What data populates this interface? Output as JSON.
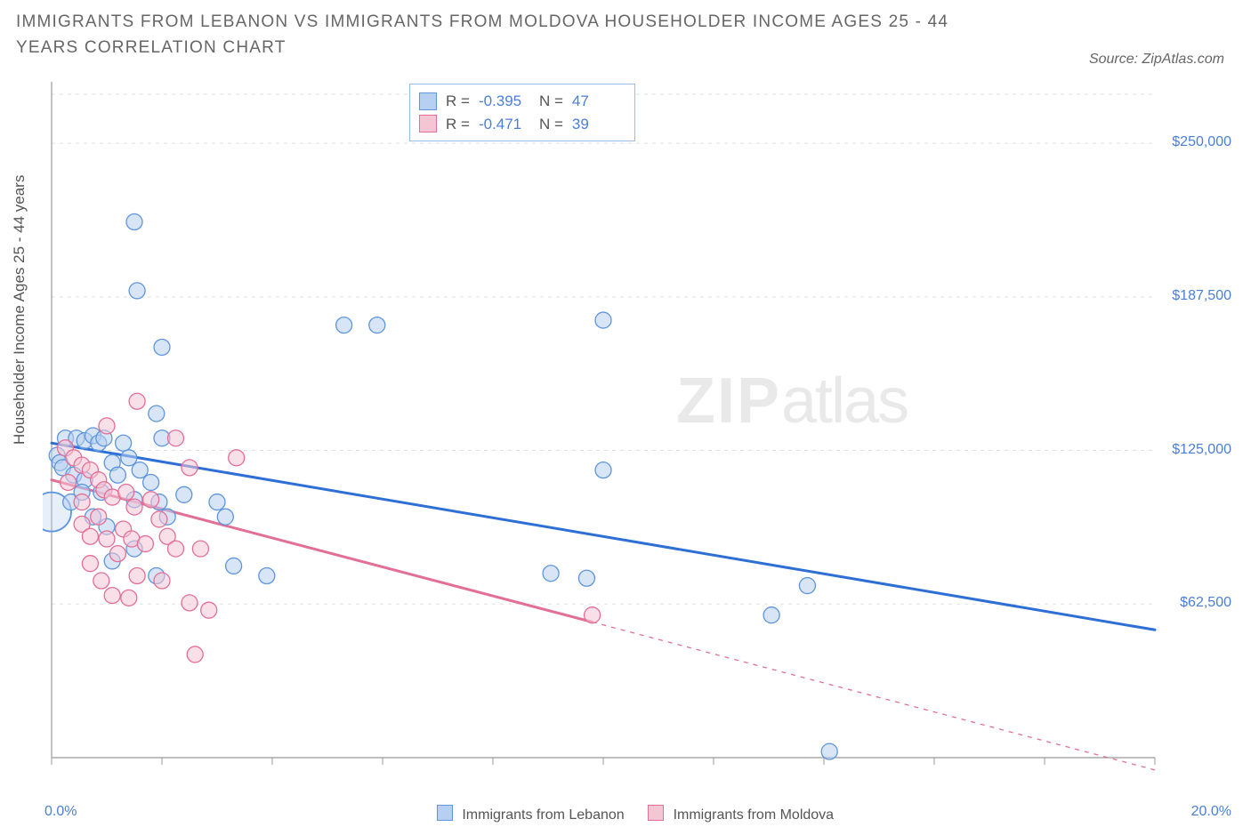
{
  "title": "IMMIGRANTS FROM LEBANON VS IMMIGRANTS FROM MOLDOVA HOUSEHOLDER INCOME AGES 25 - 44 YEARS CORRELATION CHART",
  "source": "Source: ZipAtlas.com",
  "y_axis_label": "Householder Income Ages 25 - 44 years",
  "watermark_bold": "ZIP",
  "watermark_light": "atlas",
  "chart": {
    "type": "scatter",
    "background_color": "#ffffff",
    "grid_color": "#e0e0e0",
    "axis_color": "#999999",
    "tick_label_color": "#4a7fd8",
    "x": {
      "min": 0.0,
      "max": 20.0,
      "ticks": [
        0,
        2,
        4,
        6,
        8,
        10,
        12,
        14,
        16,
        18,
        20
      ],
      "tick_labels": {
        "0": "0.0%",
        "20": "20.0%"
      }
    },
    "y": {
      "min": 0,
      "max": 275000,
      "gridlines": [
        62500,
        125000,
        187500,
        250000,
        270000
      ],
      "tick_labels": {
        "62500": "$62,500",
        "125000": "$125,000",
        "187500": "$187,500",
        "250000": "$250,000"
      }
    },
    "series": [
      {
        "name": "Immigrants from Lebanon",
        "fill": "#b7d0f1",
        "stroke": "#5e95dd",
        "fill_opacity": 0.55,
        "marker_radius": 9,
        "trend": {
          "color": "#2e6fd6",
          "width": 3,
          "y_at_xmin": 128000,
          "y_at_xmax": 52000,
          "solid_until_x": 20.0
        },
        "R": "-0.395",
        "N": "47",
        "points": [
          {
            "x": 1.5,
            "y": 218000
          },
          {
            "x": 1.55,
            "y": 190000
          },
          {
            "x": 2.0,
            "y": 167000
          },
          {
            "x": 5.3,
            "y": 176000
          },
          {
            "x": 5.9,
            "y": 176000
          },
          {
            "x": 10.0,
            "y": 178000
          },
          {
            "x": 1.9,
            "y": 140000
          },
          {
            "x": 2.0,
            "y": 130000
          },
          {
            "x": 0.25,
            "y": 130000
          },
          {
            "x": 0.45,
            "y": 130000
          },
          {
            "x": 0.6,
            "y": 129000
          },
          {
            "x": 0.75,
            "y": 131000
          },
          {
            "x": 0.85,
            "y": 128000
          },
          {
            "x": 0.95,
            "y": 130000
          },
          {
            "x": 1.3,
            "y": 128000
          },
          {
            "x": 1.4,
            "y": 122000
          },
          {
            "x": 1.1,
            "y": 120000
          },
          {
            "x": 0.1,
            "y": 123000
          },
          {
            "x": 0.15,
            "y": 120000
          },
          {
            "x": 0.2,
            "y": 118000
          },
          {
            "x": 0.4,
            "y": 115000
          },
          {
            "x": 0.6,
            "y": 113000
          },
          {
            "x": 1.2,
            "y": 115000
          },
          {
            "x": 1.6,
            "y": 117000
          },
          {
            "x": 1.8,
            "y": 112000
          },
          {
            "x": 1.5,
            "y": 105000
          },
          {
            "x": 1.95,
            "y": 104000
          },
          {
            "x": 2.4,
            "y": 107000
          },
          {
            "x": 3.0,
            "y": 104000
          },
          {
            "x": 2.1,
            "y": 98000
          },
          {
            "x": 3.15,
            "y": 98000
          },
          {
            "x": 10.0,
            "y": 117000
          },
          {
            "x": 1.0,
            "y": 94000
          },
          {
            "x": 1.5,
            "y": 85000
          },
          {
            "x": 1.1,
            "y": 80000
          },
          {
            "x": 1.9,
            "y": 74000
          },
          {
            "x": 3.3,
            "y": 78000
          },
          {
            "x": 3.9,
            "y": 74000
          },
          {
            "x": 9.05,
            "y": 75000
          },
          {
            "x": 9.7,
            "y": 73000
          },
          {
            "x": 13.7,
            "y": 70000
          },
          {
            "x": 13.05,
            "y": 58000
          },
          {
            "x": 14.1,
            "y": 2500
          },
          {
            "x": 0.35,
            "y": 104000
          },
          {
            "x": 0.55,
            "y": 108000
          },
          {
            "x": 0.9,
            "y": 108000
          },
          {
            "x": 0.75,
            "y": 98000
          }
        ],
        "big_outline_points": [
          {
            "x": 0.0,
            "y": 100000,
            "r": 22
          }
        ]
      },
      {
        "name": "Immigrants from Moldova",
        "fill": "#f4c5d3",
        "stroke": "#e36f97",
        "fill_opacity": 0.55,
        "marker_radius": 9,
        "trend": {
          "color": "#e36f97",
          "width": 3,
          "y_at_xmin": 113000,
          "y_at_xmax": -5000,
          "solid_until_x": 9.8
        },
        "R": "-0.471",
        "N": "39",
        "points": [
          {
            "x": 1.55,
            "y": 145000
          },
          {
            "x": 1.0,
            "y": 135000
          },
          {
            "x": 3.35,
            "y": 122000
          },
          {
            "x": 2.25,
            "y": 130000
          },
          {
            "x": 2.5,
            "y": 118000
          },
          {
            "x": 0.25,
            "y": 126000
          },
          {
            "x": 0.4,
            "y": 122000
          },
          {
            "x": 0.55,
            "y": 119000
          },
          {
            "x": 0.7,
            "y": 117000
          },
          {
            "x": 0.85,
            "y": 113000
          },
          {
            "x": 0.95,
            "y": 109000
          },
          {
            "x": 1.1,
            "y": 106000
          },
          {
            "x": 1.35,
            "y": 108000
          },
          {
            "x": 1.5,
            "y": 102000
          },
          {
            "x": 1.8,
            "y": 105000
          },
          {
            "x": 1.95,
            "y": 97000
          },
          {
            "x": 0.55,
            "y": 104000
          },
          {
            "x": 0.85,
            "y": 98000
          },
          {
            "x": 0.55,
            "y": 95000
          },
          {
            "x": 0.7,
            "y": 90000
          },
          {
            "x": 1.0,
            "y": 89000
          },
          {
            "x": 1.3,
            "y": 93000
          },
          {
            "x": 1.45,
            "y": 89000
          },
          {
            "x": 1.7,
            "y": 87000
          },
          {
            "x": 1.2,
            "y": 83000
          },
          {
            "x": 2.1,
            "y": 90000
          },
          {
            "x": 2.25,
            "y": 85000
          },
          {
            "x": 2.7,
            "y": 85000
          },
          {
            "x": 0.7,
            "y": 79000
          },
          {
            "x": 0.9,
            "y": 72000
          },
          {
            "x": 1.55,
            "y": 74000
          },
          {
            "x": 2.0,
            "y": 72000
          },
          {
            "x": 1.1,
            "y": 66000
          },
          {
            "x": 1.4,
            "y": 65000
          },
          {
            "x": 2.5,
            "y": 63000
          },
          {
            "x": 2.85,
            "y": 60000
          },
          {
            "x": 2.6,
            "y": 42000
          },
          {
            "x": 9.8,
            "y": 58000
          },
          {
            "x": 0.3,
            "y": 112000
          }
        ]
      }
    ]
  },
  "stats_box": {
    "border_color": "#9bbce8",
    "label_color": "#555555",
    "value_color": "#4a7fd8"
  },
  "legend_bottom": {
    "items": [
      {
        "label": "Immigrants from Lebanon",
        "fill": "#b7d0f1",
        "stroke": "#5e95dd"
      },
      {
        "label": "Immigrants from Moldova",
        "fill": "#f4c5d3",
        "stroke": "#e36f97"
      }
    ]
  }
}
